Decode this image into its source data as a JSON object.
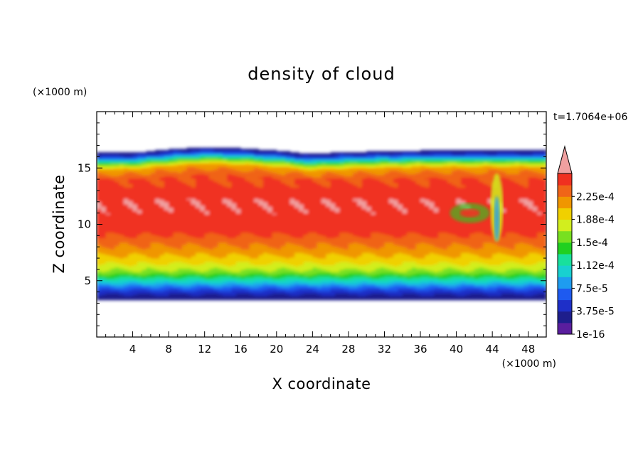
{
  "chart_data": {
    "type": "heatmap",
    "title": "density of cloud",
    "time_label": "t=1.7064e+06",
    "xlabel": "X coordinate",
    "ylabel": "Z coordinate",
    "x_unit": "(×1000 m)",
    "y_unit": "(×1000 m)",
    "xlim": [
      0,
      50
    ],
    "ylim": [
      0,
      20
    ],
    "x_ticks": [
      4,
      8,
      12,
      16,
      20,
      24,
      28,
      32,
      36,
      40,
      44,
      48
    ],
    "y_ticks": [
      5,
      10,
      15
    ],
    "colorbar": {
      "labels": [
        "2.25e-4",
        "1.88e-4",
        "1.5e-4",
        "1.12e-4",
        "7.5e-5",
        "3.75e-5",
        "1e-16"
      ],
      "label_values": [
        0.000225,
        0.0001875,
        0.00015,
        0.0001125,
        7.5e-05,
        3.75e-05,
        1e-16
      ],
      "levels": [
        1e-16,
        1.875e-05,
        3.75e-05,
        5.625e-05,
        7.5e-05,
        9.375e-05,
        0.0001125,
        0.00013125,
        0.00015,
        0.00016875,
        0.0001875,
        0.00020625,
        0.000225,
        0.00024375
      ],
      "colors": [
        "#5a1e9e",
        "#1e1e8c",
        "#1e2fc8",
        "#1e5af0",
        "#1e9cf0",
        "#18d0d0",
        "#18e09c",
        "#20d020",
        "#78e020",
        "#d2ee1e",
        "#f0d000",
        "#f09600",
        "#f06418",
        "#f03020",
        "#f0a0a0"
      ],
      "extend": "max"
    },
    "cloud_layer": {
      "base_z": 3.3,
      "top_z_profile": [
        {
          "x": 0,
          "z": 16.3
        },
        {
          "x": 4,
          "z": 16.3
        },
        {
          "x": 8,
          "z": 16.6
        },
        {
          "x": 12,
          "z": 16.8
        },
        {
          "x": 16,
          "z": 16.7
        },
        {
          "x": 20,
          "z": 16.5
        },
        {
          "x": 24,
          "z": 16.2
        },
        {
          "x": 26,
          "z": 16.3
        },
        {
          "x": 30,
          "z": 16.4
        },
        {
          "x": 36,
          "z": 16.5
        },
        {
          "x": 44,
          "z": 16.5
        },
        {
          "x": 50,
          "z": 16.5
        }
      ],
      "band_profile": [
        {
          "z": 3.3,
          "density": 1e-16
        },
        {
          "z": 3.8,
          "density": 2e-05
        },
        {
          "z": 4.3,
          "density": 4.5e-05
        },
        {
          "z": 4.8,
          "density": 8e-05
        },
        {
          "z": 5.3,
          "density": 0.000115
        },
        {
          "z": 5.8,
          "density": 0.000145
        },
        {
          "z": 6.5,
          "density": 0.00017
        },
        {
          "z": 7.5,
          "density": 0.000195
        },
        {
          "z": 8.5,
          "density": 0.000215
        },
        {
          "z": 9.5,
          "density": 0.000235
        },
        {
          "z": 12.0,
          "density": 0.00024
        },
        {
          "z": 14.0,
          "density": 0.000225
        },
        {
          "z": 15.0,
          "density": 0.000195
        },
        {
          "z": 15.6,
          "density": 0.00012
        },
        {
          "z": 16.0,
          "density": 5e-05
        },
        {
          "z": 16.5,
          "density": 1e-16
        }
      ],
      "features": [
        {
          "name": "overturning plume",
          "x": 44.5,
          "z": 11.5,
          "density": 0.00015
        },
        {
          "name": "eddy",
          "x": 41.5,
          "z": 11.0,
          "density": 0.00013
        }
      ]
    }
  }
}
